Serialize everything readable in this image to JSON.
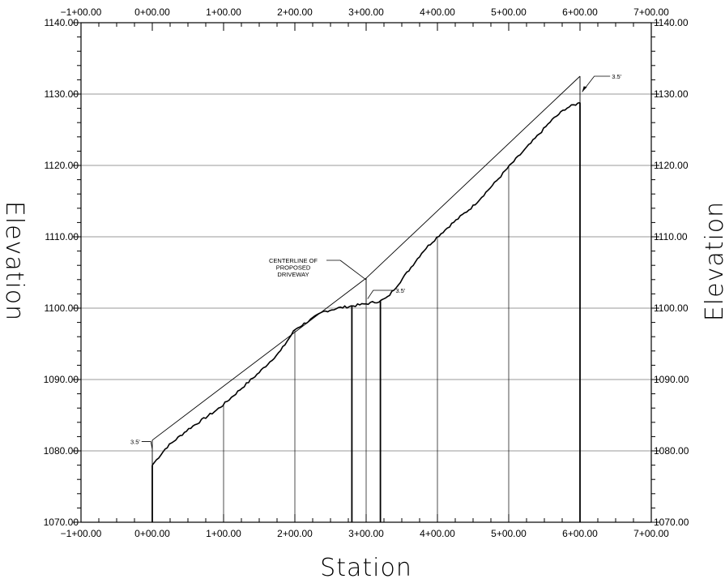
{
  "chart_data": {
    "type": "line",
    "xlabel": "Station",
    "ylabel_left": "Elevation",
    "ylabel_right": "Elevation",
    "xlim": [
      -100,
      700
    ],
    "ylim": [
      1070,
      1140
    ],
    "x_ticks": [
      -100,
      0,
      100,
      200,
      300,
      400,
      500,
      600,
      700
    ],
    "x_tick_labels": [
      "−1+00.00",
      "0+00.00",
      "1+00.00",
      "2+00.00",
      "3+00.00",
      "4+00.00",
      "5+00.00",
      "6+00.00",
      "7+00.00"
    ],
    "y_ticks": [
      1070,
      1080,
      1090,
      1100,
      1110,
      1120,
      1130,
      1140
    ],
    "y_tick_labels": [
      "1070.00",
      "1080.00",
      "1090.00",
      "1100.00",
      "1110.00",
      "1120.00",
      "1130.00",
      "1140.00"
    ],
    "grid": "horizontal",
    "series": [
      {
        "style": "proposed-grade",
        "x": [
          0,
          300,
          600
        ],
        "y": [
          1081.5,
          1104.2,
          1132.5
        ]
      },
      {
        "style": "existing-ground",
        "x": [
          0,
          20,
          50,
          90,
          100,
          150,
          180,
          200,
          240,
          260,
          280,
          300,
          320,
          330,
          350,
          380,
          400,
          420,
          450,
          480,
          500,
          530,
          560,
          580,
          600
        ],
        "y": [
          1078,
          1080.5,
          1083,
          1085.7,
          1086.5,
          1091,
          1094,
          1097,
          1099.5,
          1100,
          1100.3,
          1100.6,
          1101,
          1101.5,
          1104,
          1108,
          1110,
          1111.8,
          1114.3,
          1117.5,
          1119.8,
          1123,
          1126.3,
          1128,
          1128.8
        ]
      }
    ],
    "station_lines": [
      0,
      100,
      200,
      280,
      300,
      320,
      400,
      500,
      600
    ],
    "annotations": [
      {
        "text": "3.5'",
        "x": -15,
        "y": 1081.3
      },
      {
        "text": "CENTERLINE OF",
        "x": 270,
        "y": 1105.5
      },
      {
        "text": "PROPOSED",
        "x": 270,
        "y": 1104.5
      },
      {
        "text": "DRIVEWAY",
        "x": 270,
        "y": 1103.5
      },
      {
        "text": "3.5'",
        "x": 330,
        "y": 1102.5
      },
      {
        "text": "3.5'",
        "x": 640,
        "y": 1132.5
      }
    ]
  }
}
